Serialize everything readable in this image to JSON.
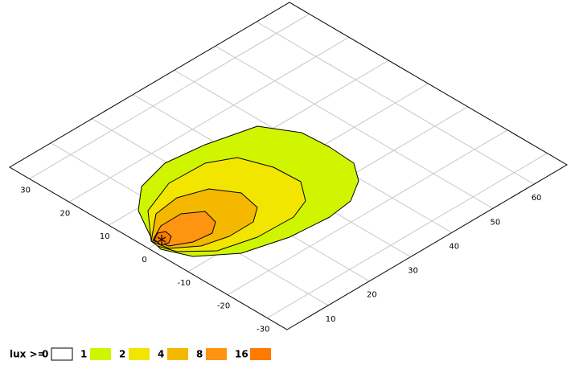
{
  "chart_data": {
    "type": "contour",
    "xlim": [
      0,
      68
    ],
    "xticks": [
      10,
      20,
      30,
      40,
      50,
      60
    ],
    "ylim": [
      -35,
      35
    ],
    "yticks": [
      -30,
      -20,
      -10,
      0,
      10,
      20,
      30
    ],
    "grid": true,
    "legend_title": "lux >=",
    "levels": [
      0,
      1,
      2,
      4,
      8,
      16
    ],
    "colors": [
      "#ffffff",
      "#d0f500",
      "#f2e600",
      "#f5b800",
      "#ff9410",
      "#ff7a00"
    ]
  }
}
